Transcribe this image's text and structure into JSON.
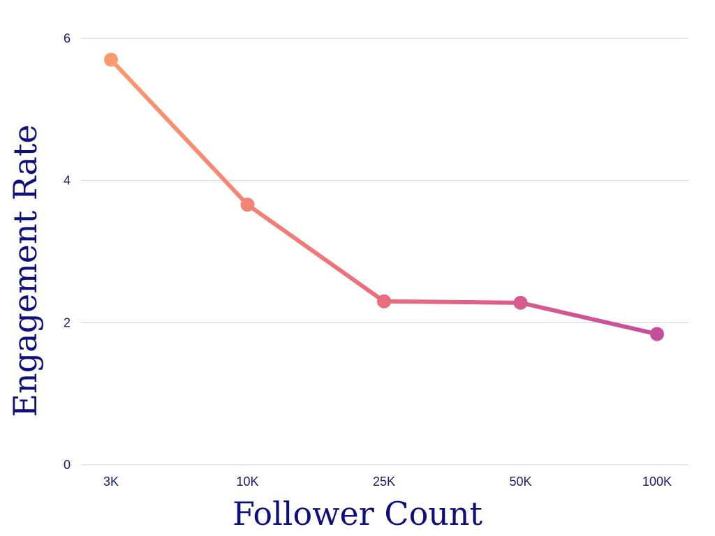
{
  "chart_data": {
    "type": "line",
    "title": "",
    "xlabel": "Follower Count",
    "ylabel": "Engagement Rate",
    "categories": [
      "3K",
      "10K",
      "25K",
      "50K",
      "100K"
    ],
    "series": [
      {
        "values": [
          5.7,
          3.66,
          2.3,
          2.28,
          1.84
        ]
      }
    ],
    "ylim": [
      0,
      6
    ],
    "yticks": [
      "0",
      "2",
      "4",
      "6"
    ],
    "grid": true,
    "legend": "none",
    "colors": {
      "gradient_start": "#fc9a6e",
      "gradient_mid": "#ee6f7c",
      "gradient_end": "#c44d9c",
      "text": "#1a1a6e",
      "grid": "#cfcfe4"
    }
  }
}
